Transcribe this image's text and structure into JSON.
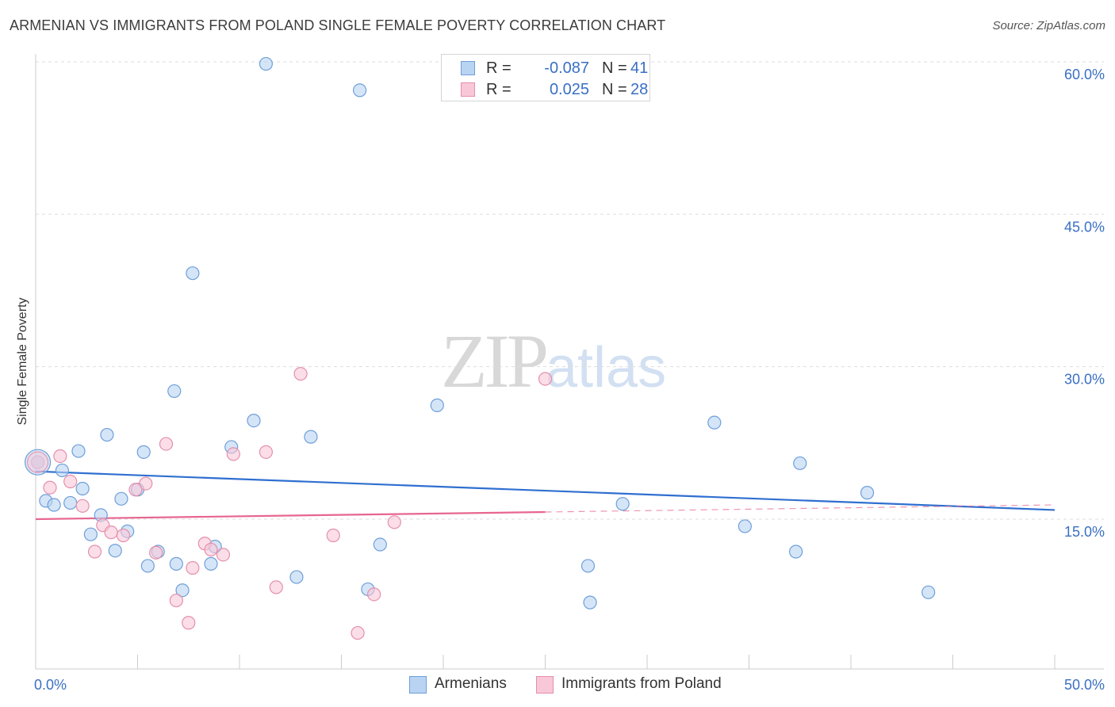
{
  "title": "ARMENIAN VS IMMIGRANTS FROM POLAND SINGLE FEMALE POVERTY CORRELATION CHART",
  "source": "Source: ZipAtlas.com",
  "watermark": {
    "zip": "ZIP",
    "atlas": "atlas"
  },
  "legend": {
    "rows": [
      {
        "r_label": "R =",
        "r_value": "-0.087",
        "n_label": "N =",
        "n_value": "41"
      },
      {
        "r_label": "R =",
        "r_value": "0.025",
        "n_label": "N =",
        "n_value": "28"
      }
    ]
  },
  "colors": {
    "blue_fill": "#b9d3f3",
    "blue_stroke": "#6e9fd8",
    "blue_line": "#2f6fd0",
    "pink_fill": "#f8c8d8",
    "pink_stroke": "#e58fab",
    "pink_line": "#e7668f",
    "grid": "#dddddd",
    "axis_text": "#3a6fc4"
  },
  "chart_data": {
    "type": "scatter",
    "title": "ARMENIAN VS IMMIGRANTS FROM POLAND SINGLE FEMALE POVERTY CORRELATION CHART",
    "xlabel": "",
    "ylabel": "Single Female Poverty",
    "xlim": [
      0,
      50
    ],
    "ylim": [
      0,
      62
    ],
    "x_tick_labels": [
      "0.0%",
      "50.0%"
    ],
    "y_ticks": [
      15,
      30,
      45,
      60
    ],
    "y_tick_labels": [
      "15.0%",
      "30.0%",
      "45.0%",
      "60.0%"
    ],
    "series": [
      {
        "name": "Armenians",
        "color": "blue",
        "r": -0.087,
        "n": 41,
        "trend": {
          "x0": 0,
          "y0": 19.7,
          "x1": 50,
          "y1": 15.9
        },
        "points": [
          {
            "x": 11.3,
            "y": 59.8
          },
          {
            "x": 15.9,
            "y": 57.2
          },
          {
            "x": 7.7,
            "y": 39.2
          },
          {
            "x": 6.8,
            "y": 27.6
          },
          {
            "x": 19.7,
            "y": 26.2
          },
          {
            "x": 10.7,
            "y": 24.7
          },
          {
            "x": 33.3,
            "y": 24.5
          },
          {
            "x": 3.5,
            "y": 23.3
          },
          {
            "x": 13.5,
            "y": 23.1
          },
          {
            "x": 9.6,
            "y": 22.1
          },
          {
            "x": 2.1,
            "y": 21.7
          },
          {
            "x": 5.3,
            "y": 21.6
          },
          {
            "x": 0.1,
            "y": 20.6
          },
          {
            "x": 37.5,
            "y": 20.5
          },
          {
            "x": 1.3,
            "y": 19.8
          },
          {
            "x": 2.3,
            "y": 18.0
          },
          {
            "x": 5.0,
            "y": 17.9
          },
          {
            "x": 40.8,
            "y": 17.6
          },
          {
            "x": 4.2,
            "y": 17.0
          },
          {
            "x": 0.5,
            "y": 16.8
          },
          {
            "x": 1.7,
            "y": 16.6
          },
          {
            "x": 0.9,
            "y": 16.4
          },
          {
            "x": 28.8,
            "y": 16.5
          },
          {
            "x": 3.2,
            "y": 15.4
          },
          {
            "x": 34.8,
            "y": 14.3
          },
          {
            "x": 4.5,
            "y": 13.8
          },
          {
            "x": 2.7,
            "y": 13.5
          },
          {
            "x": 16.9,
            "y": 12.5
          },
          {
            "x": 8.8,
            "y": 12.3
          },
          {
            "x": 3.9,
            "y": 11.9
          },
          {
            "x": 37.3,
            "y": 11.8
          },
          {
            "x": 6.0,
            "y": 11.8
          },
          {
            "x": 6.9,
            "y": 10.6
          },
          {
            "x": 8.6,
            "y": 10.6
          },
          {
            "x": 5.5,
            "y": 10.4
          },
          {
            "x": 27.1,
            "y": 10.4
          },
          {
            "x": 12.8,
            "y": 9.3
          },
          {
            "x": 7.2,
            "y": 8.0
          },
          {
            "x": 16.3,
            "y": 8.1
          },
          {
            "x": 43.8,
            "y": 7.8
          },
          {
            "x": 27.2,
            "y": 6.8
          }
        ]
      },
      {
        "name": "Immigrants from Poland",
        "color": "pink",
        "r": 0.025,
        "n": 28,
        "trend": {
          "x0": 0,
          "y0": 15.0,
          "x1": 25,
          "y1": 15.7,
          "dash_x1": 50,
          "dash_y1": 16.4
        },
        "points": [
          {
            "x": 13.0,
            "y": 29.3
          },
          {
            "x": 25.0,
            "y": 28.8
          },
          {
            "x": 6.4,
            "y": 22.4
          },
          {
            "x": 11.3,
            "y": 21.6
          },
          {
            "x": 9.7,
            "y": 21.4
          },
          {
            "x": 1.2,
            "y": 21.2
          },
          {
            "x": 0.1,
            "y": 20.6
          },
          {
            "x": 1.7,
            "y": 18.7
          },
          {
            "x": 5.4,
            "y": 18.5
          },
          {
            "x": 0.7,
            "y": 18.1
          },
          {
            "x": 4.9,
            "y": 17.9
          },
          {
            "x": 2.3,
            "y": 16.3
          },
          {
            "x": 17.6,
            "y": 14.7
          },
          {
            "x": 3.3,
            "y": 14.4
          },
          {
            "x": 3.7,
            "y": 13.7
          },
          {
            "x": 4.3,
            "y": 13.4
          },
          {
            "x": 14.6,
            "y": 13.4
          },
          {
            "x": 8.3,
            "y": 12.6
          },
          {
            "x": 8.6,
            "y": 12.0
          },
          {
            "x": 2.9,
            "y": 11.8
          },
          {
            "x": 5.9,
            "y": 11.7
          },
          {
            "x": 9.2,
            "y": 11.5
          },
          {
            "x": 7.7,
            "y": 10.2
          },
          {
            "x": 11.8,
            "y": 8.3
          },
          {
            "x": 16.6,
            "y": 7.6
          },
          {
            "x": 6.9,
            "y": 7.0
          },
          {
            "x": 7.5,
            "y": 4.8
          },
          {
            "x": 15.8,
            "y": 3.8
          }
        ]
      }
    ]
  },
  "bottom_legend": {
    "series_a": "Armenians",
    "series_b": "Immigrants from Poland"
  }
}
